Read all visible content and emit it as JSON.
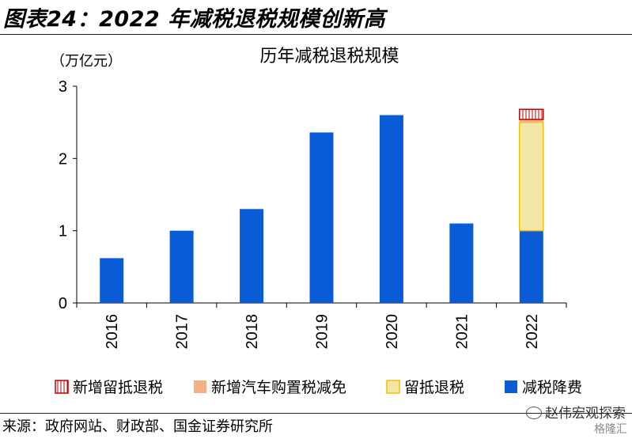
{
  "figure_title": "图表24：2022 年减税退税规模创新高",
  "source": "来源：政府网站、财政部、国金证券研究所",
  "watermark": "赵伟宏观探索",
  "watermark2": "格隆汇",
  "colors": {
    "reduction": "#0a5bd6",
    "rebate": "#f4e6a6",
    "rebate_border": "#f2c200",
    "car": "#f4b183",
    "new_rebate": "#ffffff",
    "new_rebate_border": "#c00000"
  },
  "chart_data": {
    "type": "bar",
    "stacked": true,
    "title": "历年减税退税规模",
    "ylabel": "（万亿元）",
    "xlabel": "",
    "ylim": [
      0,
      3
    ],
    "yticks": [
      0,
      1,
      2,
      3
    ],
    "categories": [
      "2016",
      "2017",
      "2018",
      "2019",
      "2020",
      "2021",
      "2022"
    ],
    "series": [
      {
        "name": "减税降费",
        "values": [
          0.62,
          1.0,
          1.3,
          2.36,
          2.6,
          1.1,
          1.0
        ]
      },
      {
        "name": "留抵退税",
        "values": [
          0,
          0,
          0,
          0,
          0,
          0,
          1.5
        ]
      },
      {
        "name": "新增汽车购置税减免",
        "values": [
          0,
          0,
          0,
          0,
          0,
          0,
          0.04
        ]
      },
      {
        "name": "新增留抵退税",
        "values": [
          0,
          0,
          0,
          0,
          0,
          0,
          0.14
        ]
      }
    ],
    "legend": {
      "position": "bottom",
      "order": [
        "新增留抵退税",
        "新增汽车购置税减免",
        "留抵退税",
        "减税降费"
      ]
    },
    "grid": false
  }
}
